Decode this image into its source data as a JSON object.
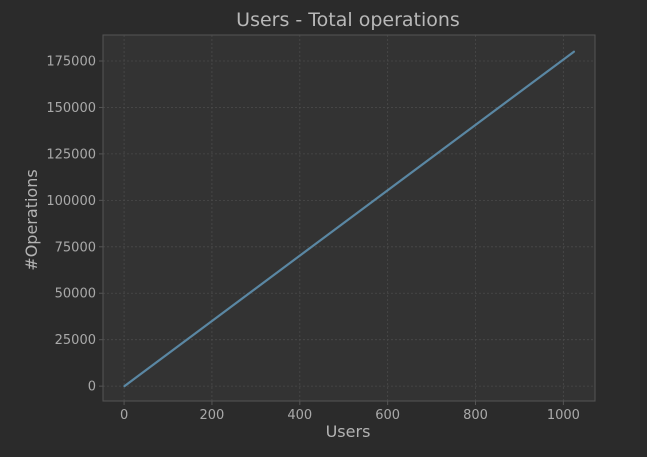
{
  "chart_data": {
    "type": "line",
    "title": "Users - Total operations",
    "xlabel": "Users",
    "ylabel": "#Operations",
    "xlim": [
      -48,
      1072
    ],
    "ylim": [
      -8000,
      189000
    ],
    "xticks": [
      0,
      200,
      400,
      600,
      800,
      1000
    ],
    "yticks": [
      0,
      25000,
      50000,
      75000,
      100000,
      125000,
      150000,
      175000
    ],
    "grid": true,
    "series": [
      {
        "x": [
          1,
          1024
        ],
        "y": [
          0,
          180000
        ]
      }
    ]
  },
  "colors": {
    "background": "#2b2b2b",
    "plot_area": "#333333",
    "frame": "#555555",
    "grid": "#4a4a4a",
    "line": "#5a87a3",
    "text": "#a9a9a9"
  }
}
